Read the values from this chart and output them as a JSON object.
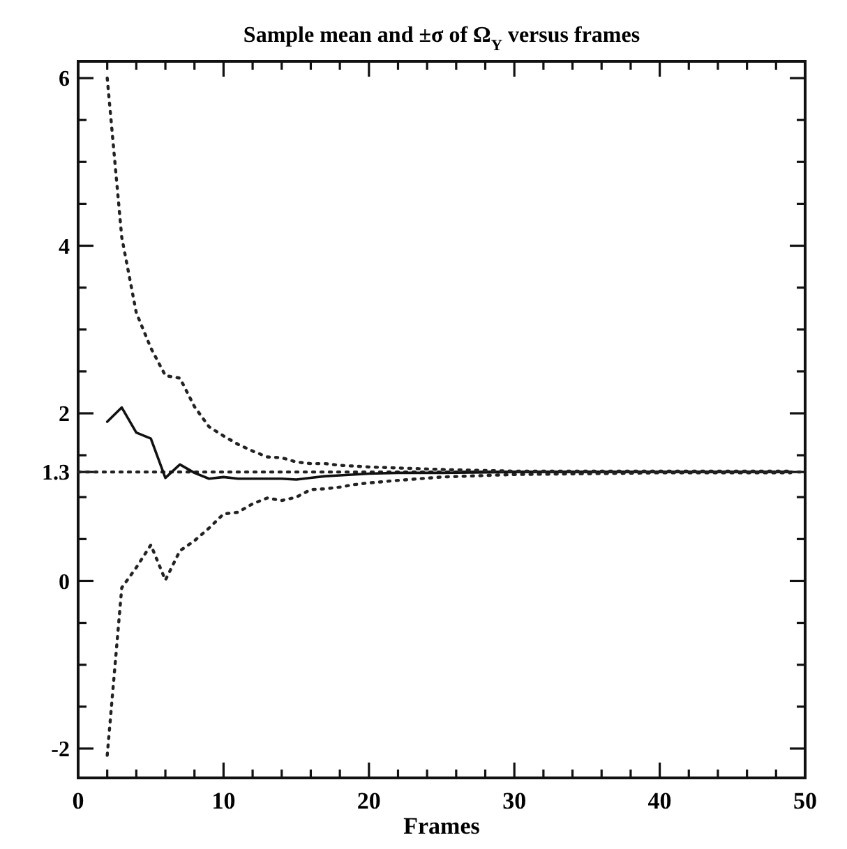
{
  "chart_data": {
    "type": "line",
    "title": "Sample mean and ±σ of Ω$_{Y}$ versus frames",
    "xlabel": "Frames",
    "xlim": [
      0,
      50
    ],
    "ylim": [
      -2.35,
      6.2
    ],
    "xticks": [
      0,
      {
        "value": 2,
        "label": null
      },
      {
        "value": 4,
        "label": null
      },
      {
        "value": 6,
        "label": null
      },
      {
        "value": 8,
        "label": null
      },
      10,
      {
        "value": 12,
        "label": null
      },
      {
        "value": 14,
        "label": null
      },
      {
        "value": 16,
        "label": null
      },
      {
        "value": 18,
        "label": null
      },
      20,
      {
        "value": 22,
        "label": null
      },
      {
        "value": 24,
        "label": null
      },
      {
        "value": 26,
        "label": null
      },
      {
        "value": 28,
        "label": null
      },
      30,
      {
        "value": 32,
        "label": null
      },
      {
        "value": 34,
        "label": null
      },
      {
        "value": 36,
        "label": null
      },
      {
        "value": 38,
        "label": null
      },
      40,
      {
        "value": 42,
        "label": null
      },
      {
        "value": 44,
        "label": null
      },
      {
        "value": 46,
        "label": null
      },
      {
        "value": 48,
        "label": null
      },
      50
    ],
    "yticks": [
      -2,
      {
        "value": -1.5,
        "label": null
      },
      {
        "value": -1,
        "label": null
      },
      {
        "value": -0.5,
        "label": null
      },
      0,
      {
        "value": 0.5,
        "label": null
      },
      {
        "value": 1,
        "label": null
      },
      1.3,
      {
        "value": 1.5,
        "label": null
      },
      2,
      {
        "value": 2.5,
        "label": null
      },
      {
        "value": 3,
        "label": null
      },
      {
        "value": 3.5,
        "label": null
      },
      4,
      {
        "value": 4.5,
        "label": null
      },
      {
        "value": 5,
        "label": null
      },
      {
        "value": 5.5,
        "label": null
      },
      6
    ],
    "ref_lines": [
      {
        "axis": "y",
        "value": 1.3,
        "color": "#222222",
        "line_style": "dotted"
      }
    ],
    "series": [
      {
        "color": "#111111",
        "line_style": "solid",
        "x": [
          2,
          3,
          4,
          5,
          6,
          7,
          8,
          9,
          10,
          11,
          12,
          13,
          14,
          15,
          16,
          17,
          18,
          19,
          20,
          22,
          25,
          30,
          35,
          40,
          45,
          49
        ],
        "values": [
          1.9,
          2.07,
          1.77,
          1.7,
          1.23,
          1.39,
          1.29,
          1.22,
          1.24,
          1.22,
          1.22,
          1.22,
          1.22,
          1.21,
          1.23,
          1.25,
          1.26,
          1.27,
          1.28,
          1.29,
          1.29,
          1.3,
          1.3,
          1.3,
          1.3,
          1.3
        ]
      },
      {
        "color": "#222222",
        "line_style": "dotted",
        "x": [
          2,
          3,
          4,
          5,
          6,
          7,
          8,
          9,
          10,
          11,
          12,
          13,
          14,
          15,
          16,
          17,
          18,
          20,
          25,
          30,
          35,
          40,
          45,
          49
        ],
        "values": [
          6.0,
          4.1,
          3.2,
          2.78,
          2.45,
          2.42,
          2.08,
          1.84,
          1.73,
          1.63,
          1.55,
          1.48,
          1.47,
          1.42,
          1.4,
          1.4,
          1.38,
          1.36,
          1.33,
          1.31,
          1.31,
          1.31,
          1.31,
          1.31
        ]
      },
      {
        "color": "#222222",
        "line_style": "dotted",
        "x": [
          2,
          3,
          4,
          5,
          6,
          7,
          8,
          9,
          10,
          11,
          12,
          13,
          14,
          15,
          16,
          17,
          18,
          19,
          20,
          22,
          25,
          30,
          35,
          40,
          45,
          49
        ],
        "values": [
          -2.08,
          -0.08,
          0.16,
          0.43,
          0.01,
          0.36,
          0.48,
          0.63,
          0.8,
          0.82,
          0.92,
          0.99,
          0.96,
          1.0,
          1.09,
          1.1,
          1.12,
          1.15,
          1.17,
          1.2,
          1.24,
          1.27,
          1.28,
          1.29,
          1.29,
          1.29
        ]
      }
    ]
  }
}
